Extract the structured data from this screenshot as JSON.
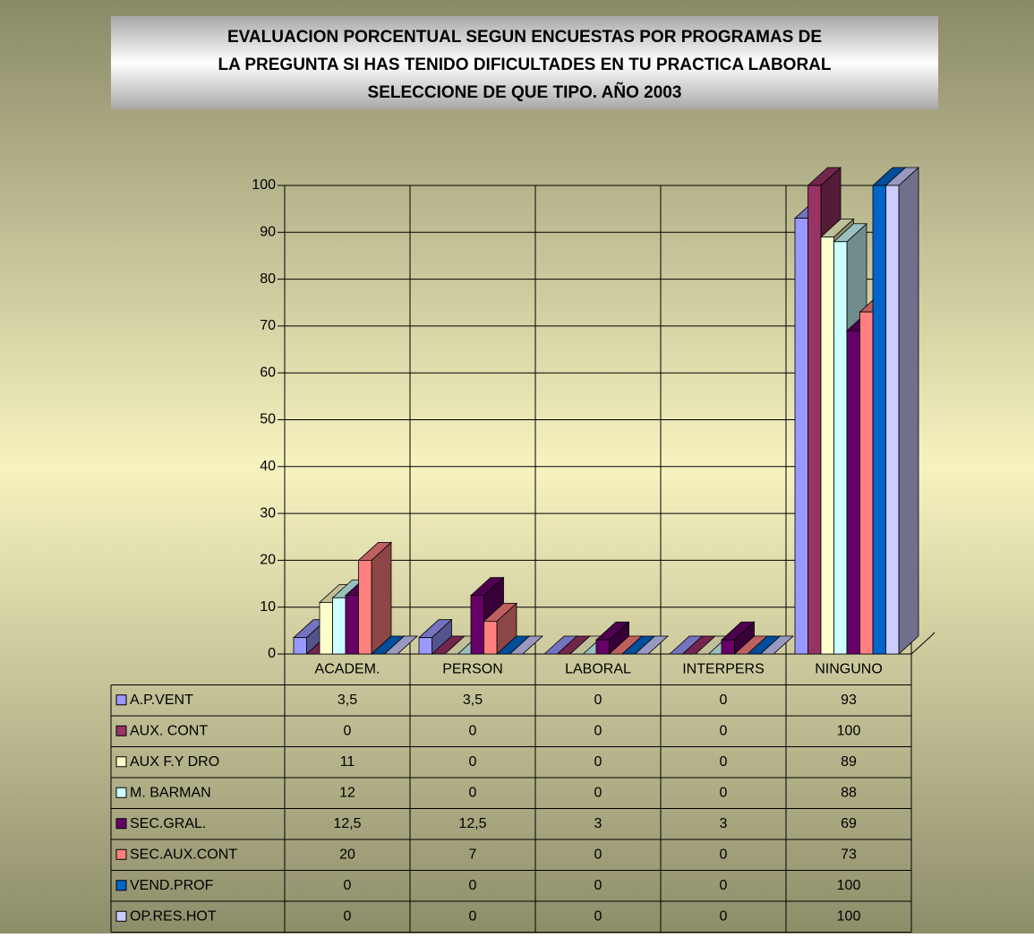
{
  "chart_data": {
    "type": "bar3d",
    "title": [
      "EVALUACION PORCENTUAL SEGUN ENCUESTAS POR PROGRAMAS DE",
      "LA PREGUNTA SI HAS TENIDO DIFICULTADES EN TU PRACTICA LABORAL",
      "SELECCIONE DE QUE TIPO. AÑO 2003"
    ],
    "categories": [
      "ACADEM.",
      "PERSON",
      "LABORAL",
      "INTERPERS",
      "NINGUNO"
    ],
    "series": [
      {
        "name": "A.P.VENT",
        "color": "#9999ff",
        "values": [
          3.5,
          3.5,
          0,
          0,
          93
        ],
        "value_labels": [
          "3,5",
          "3,5",
          "0",
          "0",
          "93"
        ]
      },
      {
        "name": "AUX. CONT",
        "color": "#993366",
        "values": [
          0,
          0,
          0,
          0,
          100
        ]
      },
      {
        "name": "AUX F.Y DRO",
        "color": "#ffffcc",
        "values": [
          11,
          0,
          0,
          0,
          89
        ]
      },
      {
        "name": "M. BARMAN",
        "color": "#ccffff",
        "values": [
          12,
          0,
          0,
          0,
          88
        ]
      },
      {
        "name": "SEC.GRAL.",
        "color": "#660066",
        "values": [
          12.5,
          12.5,
          3,
          3,
          69
        ],
        "value_labels": [
          "12,5",
          "12,5",
          "3",
          "3",
          "69"
        ]
      },
      {
        "name": "SEC.AUX.CONT",
        "color": "#ff8080",
        "values": [
          20,
          7,
          0,
          0,
          73
        ]
      },
      {
        "name": "VEND.PROF",
        "color": "#0066cc",
        "values": [
          0,
          0,
          0,
          0,
          100
        ]
      },
      {
        "name": "OP.RES.HOT",
        "color": "#ccccff",
        "values": [
          0,
          0,
          0,
          0,
          100
        ]
      }
    ],
    "ylim": [
      0,
      100
    ],
    "yticks": [
      0,
      10,
      20,
      30,
      40,
      50,
      60,
      70,
      80,
      90,
      100
    ],
    "grid": true,
    "data_table": true
  }
}
